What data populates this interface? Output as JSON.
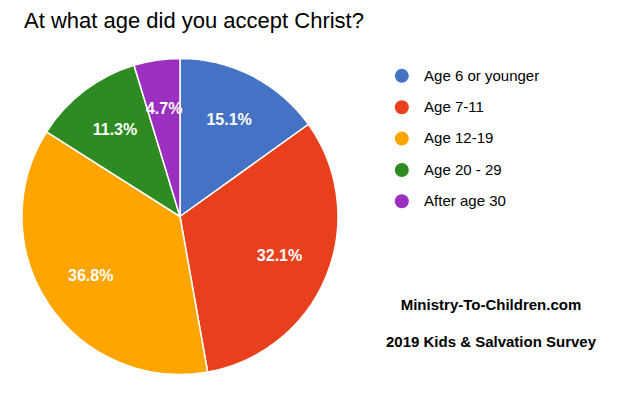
{
  "chart_data": {
    "type": "pie",
    "title": "At what age did you accept Christ?",
    "categories": [
      "Age 6 or younger",
      "Age 7-11",
      "Age 12-19",
      "Age 20 - 29",
      "After age 30"
    ],
    "values": [
      15.1,
      32.1,
      36.8,
      11.3,
      4.7
    ],
    "value_labels": [
      "15.1%",
      "32.1%",
      "36.8%",
      "11.3%",
      "4.7%"
    ],
    "colors": [
      "#4472C4",
      "#E8401C",
      "#FFA500",
      "#2E8B22",
      "#9B30C0"
    ],
    "data_labels": true,
    "legend": "right",
    "annotations": [
      "Ministry-To-Children.com",
      "2019 Kids & Salvation Survey"
    ]
  }
}
